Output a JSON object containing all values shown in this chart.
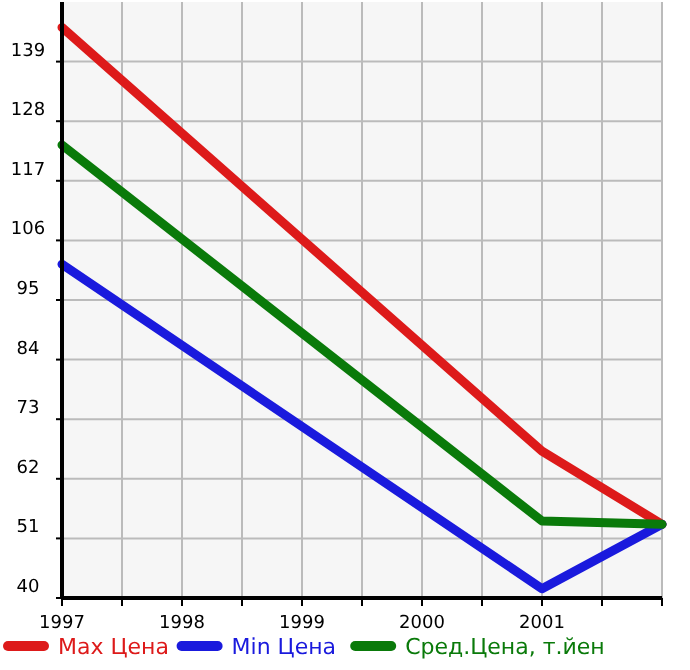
{
  "chart_data": {
    "type": "line",
    "x": [
      1997,
      2001,
      2002
    ],
    "xlim": [
      1997,
      2002
    ],
    "xticks": [
      1997,
      {
        "value": 1997.5,
        "label": null
      },
      1998,
      {
        "value": 1998.5,
        "label": null
      },
      1999,
      {
        "value": 1999.5,
        "label": null
      },
      2000,
      {
        "value": 2000.5,
        "label": null
      },
      2001,
      {
        "value": 2001.5,
        "label": null
      },
      {
        "value": 2002,
        "label": null
      }
    ],
    "ylim": [
      40,
      150
    ],
    "yticks": [
      40,
      51,
      62,
      73,
      84,
      95,
      106,
      117,
      128,
      139
    ],
    "grid": true,
    "legend": "bottom",
    "marker": "none",
    "line_style": "solid",
    "series": [
      {
        "name": "Max Цена",
        "color": "#dd1a1a",
        "values": [
          145.3,
          67.1,
          53.6
        ]
      },
      {
        "name": "Min Цена",
        "color": "#1a1add",
        "values": [
          101.6,
          41.7,
          53.6
        ]
      },
      {
        "name": "Сред.Цена, т.йен",
        "color": "#0a7a0a",
        "values": [
          123.6,
          54.2,
          53.6
        ]
      }
    ]
  }
}
